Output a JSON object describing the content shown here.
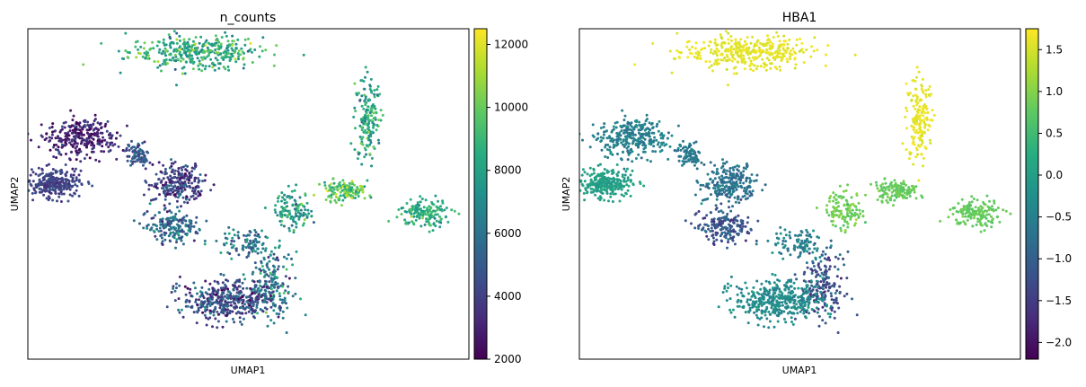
{
  "figure": {
    "panels": [
      {
        "title": "n_counts",
        "xlabel": "UMAP1",
        "ylabel": "UMAP2",
        "colorbar": {
          "min": 2000,
          "max": 12500,
          "ticks": [
            2000,
            4000,
            6000,
            8000,
            10000,
            12000
          ],
          "tick_labels": [
            "2000",
            "4000",
            "6000",
            "8000",
            "10000",
            "12000"
          ]
        }
      },
      {
        "title": "HBA1",
        "xlabel": "UMAP1",
        "ylabel": "UMAP2",
        "colorbar": {
          "min": -2.2,
          "max": 1.75,
          "ticks": [
            -2.0,
            -1.5,
            -1.0,
            -0.5,
            0.0,
            0.5,
            1.0,
            1.5
          ],
          "tick_labels": [
            "−2.0",
            "−1.5",
            "−1.0",
            "−0.5",
            "0.0",
            "0.5",
            "1.0",
            "1.5"
          ]
        }
      }
    ]
  },
  "chart_data": [
    {
      "type": "scatter",
      "title": "n_counts",
      "xlabel": "UMAP1",
      "ylabel": "UMAP2",
      "colormap": "viridis",
      "color_range": [
        2000,
        12500
      ],
      "clusters": [
        {
          "x": 0.38,
          "y": 0.93,
          "spread": [
            0.15,
            0.05
          ],
          "count": 360,
          "color_value": 8500,
          "color_spread": 2500
        },
        {
          "x": 0.77,
          "y": 0.73,
          "spread": [
            0.03,
            0.13
          ],
          "count": 170,
          "color_value": 8000,
          "color_spread": 2500
        },
        {
          "x": 0.12,
          "y": 0.67,
          "spread": [
            0.08,
            0.06
          ],
          "count": 300,
          "color_value": 3000,
          "color_spread": 1500
        },
        {
          "x": 0.06,
          "y": 0.53,
          "spread": [
            0.06,
            0.04
          ],
          "count": 260,
          "color_value": 4000,
          "color_spread": 1000
        },
        {
          "x": 0.25,
          "y": 0.62,
          "spread": [
            0.03,
            0.04
          ],
          "count": 80,
          "color_value": 5000,
          "color_spread": 1800
        },
        {
          "x": 0.34,
          "y": 0.53,
          "spread": [
            0.06,
            0.06
          ],
          "count": 240,
          "color_value": 4000,
          "color_spread": 2000
        },
        {
          "x": 0.33,
          "y": 0.4,
          "spread": [
            0.06,
            0.05
          ],
          "count": 180,
          "color_value": 5500,
          "color_spread": 2500
        },
        {
          "x": 0.6,
          "y": 0.45,
          "spread": [
            0.04,
            0.06
          ],
          "count": 120,
          "color_value": 8000,
          "color_spread": 2500
        },
        {
          "x": 0.72,
          "y": 0.51,
          "spread": [
            0.05,
            0.03
          ],
          "count": 140,
          "color_value": 9500,
          "color_spread": 2500
        },
        {
          "x": 0.9,
          "y": 0.44,
          "spread": [
            0.06,
            0.04
          ],
          "count": 150,
          "color_value": 8500,
          "color_spread": 1800
        },
        {
          "x": 0.55,
          "y": 0.22,
          "spread": [
            0.05,
            0.1
          ],
          "count": 180,
          "color_value": 6000,
          "color_spread": 3000
        },
        {
          "x": 0.45,
          "y": 0.18,
          "spread": [
            0.1,
            0.06
          ],
          "count": 400,
          "color_value": 4500,
          "color_spread": 2500
        },
        {
          "x": 0.5,
          "y": 0.35,
          "spread": [
            0.06,
            0.05
          ],
          "count": 100,
          "color_value": 6000,
          "color_spread": 2500
        }
      ]
    },
    {
      "type": "scatter",
      "title": "HBA1",
      "xlabel": "UMAP1",
      "ylabel": "UMAP2",
      "colormap": "viridis",
      "color_range": [
        -2.2,
        1.75
      ],
      "clusters": [
        {
          "x": 0.38,
          "y": 0.93,
          "spread": [
            0.15,
            0.05
          ],
          "count": 360,
          "color_value": 1.6,
          "color_spread": 0.15
        },
        {
          "x": 0.77,
          "y": 0.73,
          "spread": [
            0.03,
            0.13
          ],
          "count": 170,
          "color_value": 1.6,
          "color_spread": 0.15
        },
        {
          "x": 0.12,
          "y": 0.67,
          "spread": [
            0.08,
            0.06
          ],
          "count": 300,
          "color_value": -0.5,
          "color_spread": 0.3
        },
        {
          "x": 0.06,
          "y": 0.53,
          "spread": [
            0.06,
            0.04
          ],
          "count": 260,
          "color_value": 0.0,
          "color_spread": 0.2
        },
        {
          "x": 0.25,
          "y": 0.62,
          "spread": [
            0.03,
            0.04
          ],
          "count": 80,
          "color_value": -0.6,
          "color_spread": 0.3
        },
        {
          "x": 0.34,
          "y": 0.53,
          "spread": [
            0.06,
            0.06
          ],
          "count": 240,
          "color_value": -0.7,
          "color_spread": 0.35
        },
        {
          "x": 0.33,
          "y": 0.4,
          "spread": [
            0.06,
            0.05
          ],
          "count": 180,
          "color_value": -1.2,
          "color_spread": 0.6
        },
        {
          "x": 0.6,
          "y": 0.45,
          "spread": [
            0.04,
            0.06
          ],
          "count": 120,
          "color_value": 0.9,
          "color_spread": 0.3
        },
        {
          "x": 0.72,
          "y": 0.51,
          "spread": [
            0.05,
            0.03
          ],
          "count": 140,
          "color_value": 0.8,
          "color_spread": 0.2
        },
        {
          "x": 0.9,
          "y": 0.44,
          "spread": [
            0.06,
            0.04
          ],
          "count": 150,
          "color_value": 0.8,
          "color_spread": 0.15
        },
        {
          "x": 0.55,
          "y": 0.22,
          "spread": [
            0.05,
            0.1
          ],
          "count": 180,
          "color_value": -1.3,
          "color_spread": 0.5
        },
        {
          "x": 0.45,
          "y": 0.18,
          "spread": [
            0.1,
            0.06
          ],
          "count": 400,
          "color_value": -0.3,
          "color_spread": 0.3
        },
        {
          "x": 0.5,
          "y": 0.35,
          "spread": [
            0.06,
            0.05
          ],
          "count": 100,
          "color_value": -0.5,
          "color_spread": 0.4
        }
      ]
    }
  ]
}
